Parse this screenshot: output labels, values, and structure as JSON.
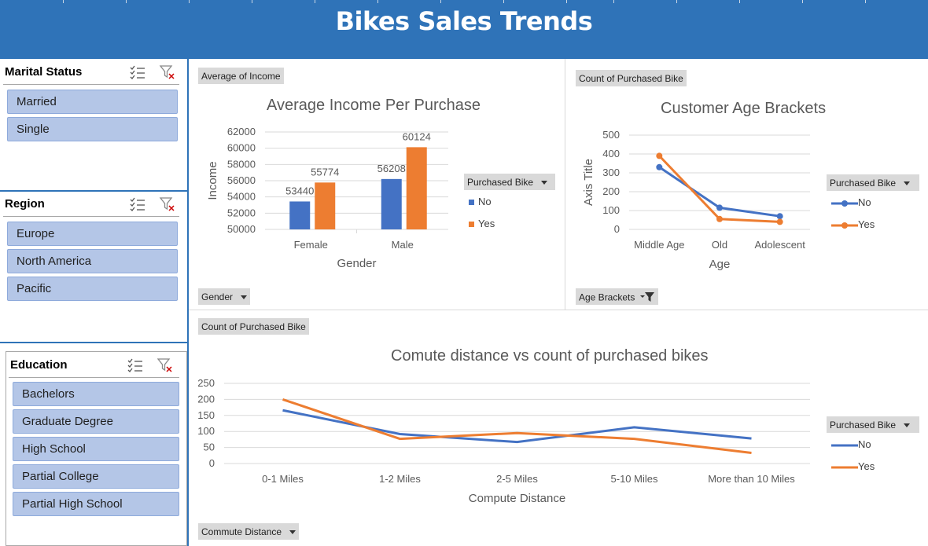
{
  "banner": {
    "title": "Bikes Sales Trends"
  },
  "slicers": [
    {
      "title": "Marital Status",
      "items": [
        "Married",
        "Single"
      ]
    },
    {
      "title": "Region",
      "items": [
        "Europe",
        "North America",
        "Pacific"
      ]
    },
    {
      "title": "Education",
      "items": [
        "Bachelors",
        "Graduate Degree",
        "High School",
        "Partial College",
        "Partial High School"
      ]
    }
  ],
  "colors": {
    "banner": "#2f73b8",
    "series_no": "#4472c4",
    "series_yes": "#ed7d31",
    "slicer_item": "#b4c6e7"
  },
  "icons": {
    "multi_select": "multi-select-icon",
    "clear_filter": "clear-filter-icon",
    "filter": "filter-icon"
  },
  "chart1": {
    "value_field": "Average of Income",
    "axis_field": "Gender",
    "legend_field": "Purchased Bike"
  },
  "chart2": {
    "value_field": "Count of Purchased Bike",
    "axis_field": "Age Brackets",
    "legend_field": "Purchased Bike"
  },
  "chart3": {
    "value_field": "Count of Purchased Bike",
    "axis_field": "Commute Distance",
    "legend_field": "Purchased Bike"
  },
  "chart_data": [
    {
      "type": "bar",
      "title": "Average Income Per Purchase",
      "xlabel": "Gender",
      "ylabel": "Income",
      "categories": [
        "Female",
        "Male"
      ],
      "ylim": [
        50000,
        62000
      ],
      "yticks": [
        50000,
        52000,
        54000,
        56000,
        58000,
        60000,
        62000
      ],
      "grid": true,
      "legend": "right",
      "series": [
        {
          "name": "No",
          "values": [
            53440,
            56208
          ]
        },
        {
          "name": "Yes",
          "values": [
            55774,
            60124
          ]
        }
      ]
    },
    {
      "type": "line",
      "title": "Customer Age Brackets",
      "xlabel": "Age",
      "ylabel": "Axis Title",
      "categories": [
        "Middle Age",
        "Old",
        "Adolescent"
      ],
      "ylim": [
        0,
        500
      ],
      "yticks": [
        0,
        100,
        200,
        300,
        400,
        500
      ],
      "grid": true,
      "legend": "right",
      "markers": true,
      "series": [
        {
          "name": "No",
          "values": [
            330,
            115,
            70
          ]
        },
        {
          "name": "Yes",
          "values": [
            390,
            55,
            40
          ]
        }
      ]
    },
    {
      "type": "line",
      "title": "Comute distance vs count of purchased bikes",
      "xlabel": "Compute Distance",
      "ylabel": "",
      "categories": [
        "0-1 Miles",
        "1-2 Miles",
        "2-5 Miles",
        "5-10 Miles",
        "More than 10 Miles"
      ],
      "ylim": [
        0,
        250
      ],
      "yticks": [
        0,
        50,
        100,
        150,
        200,
        250
      ],
      "grid": true,
      "legend": "right",
      "markers": false,
      "series": [
        {
          "name": "No",
          "values": [
            166,
            92,
            67,
            113,
            78
          ]
        },
        {
          "name": "Yes",
          "values": [
            200,
            77,
            95,
            77,
            33
          ]
        }
      ]
    }
  ]
}
